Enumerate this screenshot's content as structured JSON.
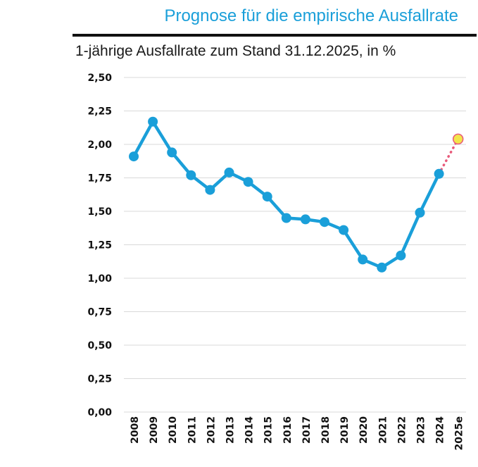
{
  "header": {
    "title": "Prognose für die empirische Ausfallrate",
    "subtitle": "1-jährige Ausfallrate zum Stand 31.12.2025, in %"
  },
  "colors": {
    "title": "#1a9fd9",
    "series": "#1a9fd9",
    "forecast_line": "#e85a7a",
    "forecast_marker_fill": "#f2e54a",
    "forecast_marker_stroke": "#e85a7a",
    "grid": "#d9d9d9"
  },
  "chart_data": {
    "type": "line",
    "title": "Prognose für die empirische Ausfallrate",
    "subtitle": "1-jährige Ausfallrate zum Stand 31.12.2025, in %",
    "xlabel": "",
    "ylabel": "",
    "categories": [
      "2008",
      "2009",
      "2010",
      "2011",
      "2012",
      "2013",
      "2014",
      "2015",
      "2016",
      "2017",
      "2018",
      "2019",
      "2020",
      "2021",
      "2022",
      "2023",
      "2024",
      "2025e"
    ],
    "series": [
      {
        "values": [
          1.91,
          2.17,
          1.94,
          1.77,
          1.66,
          1.79,
          1.72,
          1.61,
          1.45,
          1.44,
          1.42,
          1.36,
          1.14,
          1.08,
          1.17,
          1.49,
          1.78,
          null
        ]
      },
      {
        "values": [
          null,
          null,
          null,
          null,
          null,
          null,
          null,
          null,
          null,
          null,
          null,
          null,
          null,
          null,
          null,
          null,
          1.78,
          2.04
        ]
      }
    ],
    "ylim": [
      0,
      2.5
    ],
    "yticks": [
      "0,00",
      "0,25",
      "0,50",
      "0,75",
      "1,00",
      "1,25",
      "1,50",
      "1,75",
      "2,00",
      "2,25",
      "2,50"
    ],
    "grid": "horizontal",
    "legend": "none"
  }
}
